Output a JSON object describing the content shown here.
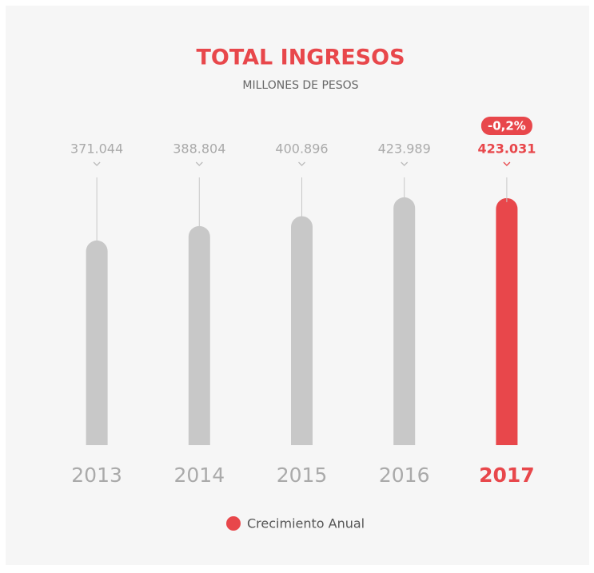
{
  "chart_data": {
    "type": "bar",
    "title": "TOTAL INGRESOS",
    "subtitle": "MILLONES DE PESOS",
    "categories": [
      "2013",
      "2014",
      "2015",
      "2016",
      "2017"
    ],
    "values": [
      371044,
      388804,
      400896,
      423989,
      423031
    ],
    "value_labels": [
      "371.044",
      "388.804",
      "400.896",
      "423.989",
      "423.031"
    ],
    "color": "#c8c8c8",
    "highlight": "2017",
    "highlight_color": "#e8474b",
    "ylim": [
      120000,
      470000
    ],
    "annotations": [
      {
        "text": "-0,2%",
        "category": "2017"
      }
    ],
    "legend": {
      "label": "Crecimiento Anual",
      "color": "#e8474b"
    }
  }
}
